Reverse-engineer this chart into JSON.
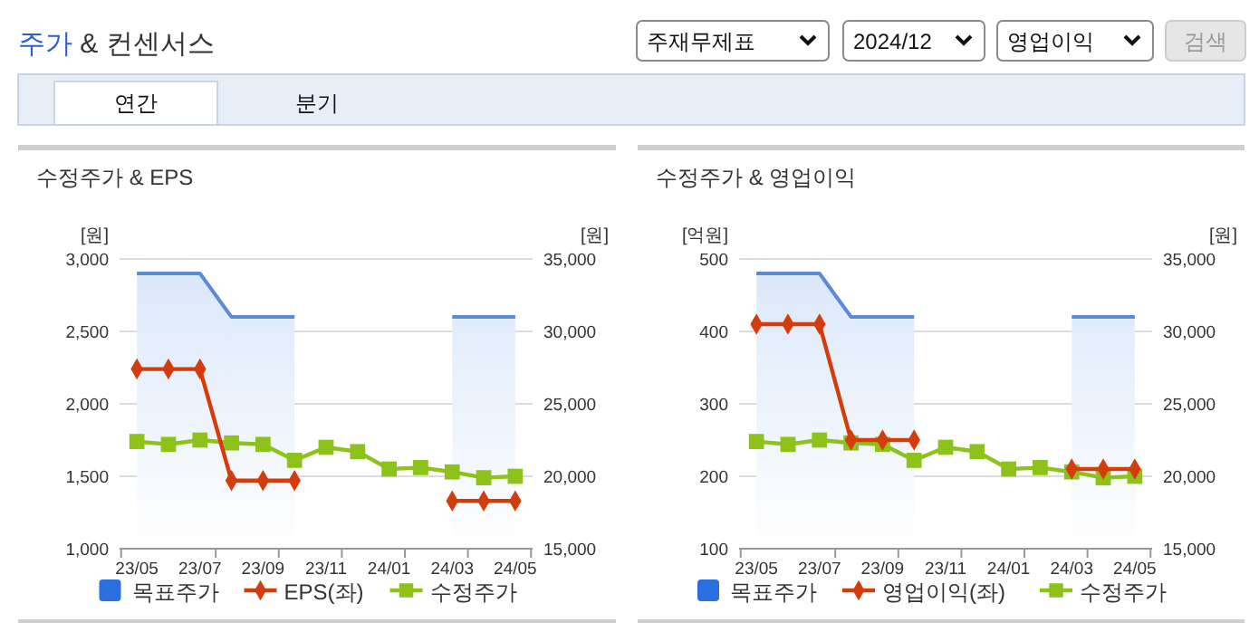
{
  "chart_data": [
    {
      "type": "other",
      "title": "주가 & 컨센서스",
      "annotations": [
        "주재무제표",
        "2024/12",
        "영업이익",
        "검색",
        "연간",
        "분기"
      ]
    },
    {
      "type": "line",
      "title": "수정주가 & EPS",
      "categories": [
        "23/05",
        null,
        "23/07",
        null,
        "23/09",
        null,
        "23/11",
        null,
        "24/01",
        null,
        "24/03",
        null,
        "24/05"
      ],
      "ylabel": "[원]",
      "y2label": "[원]",
      "ylim": [
        1000,
        3000
      ],
      "yticks": [
        {
          "value": 1000,
          "label": "1,000"
        },
        {
          "value": 1500,
          "label": "1,500"
        },
        {
          "value": 2000,
          "label": "2,000"
        },
        {
          "value": 2500,
          "label": "2,500"
        },
        {
          "value": 3000,
          "label": "3,000"
        }
      ],
      "y2lim": [
        15000,
        35000
      ],
      "y2ticks": [
        {
          "value": 15000,
          "label": "15,000"
        },
        {
          "value": 20000,
          "label": "20,000"
        },
        {
          "value": 25000,
          "label": "25,000"
        },
        {
          "value": 30000,
          "label": "30,000"
        },
        {
          "value": 35000,
          "label": "35,000"
        }
      ],
      "grid": "y",
      "legend": "bottom",
      "series": [
        {
          "name": "목표주가",
          "type": "area",
          "axis": "y2",
          "color": "#5b8ad8",
          "marker": "none",
          "values": [
            34000,
            34000,
            34000,
            31000,
            31000,
            31000,
            null,
            null,
            null,
            null,
            31000,
            31000,
            31000
          ]
        },
        {
          "name": "EPS(좌)",
          "type": "line",
          "color": "#d43c0c",
          "marker": "diamond",
          "values": [
            2240,
            2240,
            2240,
            1470,
            1470,
            1470,
            null,
            null,
            null,
            null,
            1330,
            1330,
            1330
          ]
        },
        {
          "name": "수정주가",
          "type": "line",
          "axis": "y2",
          "color": "#8cc21a",
          "marker": "square",
          "values": [
            22400,
            22200,
            22500,
            22300,
            22200,
            21100,
            22000,
            21700,
            20500,
            20600,
            20300,
            19900,
            20000
          ]
        }
      ]
    },
    {
      "type": "line",
      "title": "수정주가 & 영업이익",
      "categories": [
        "23/05",
        null,
        "23/07",
        null,
        "23/09",
        null,
        "23/11",
        null,
        "24/01",
        null,
        "24/03",
        null,
        "24/05"
      ],
      "ylabel": "[억원]",
      "y2label": "[원]",
      "ylim": [
        100,
        500
      ],
      "yticks": [
        100,
        200,
        300,
        400,
        500
      ],
      "y2lim": [
        15000,
        35000
      ],
      "y2ticks": [
        {
          "value": 15000,
          "label": "15,000"
        },
        {
          "value": 20000,
          "label": "20,000"
        },
        {
          "value": 25000,
          "label": "25,000"
        },
        {
          "value": 30000,
          "label": "30,000"
        },
        {
          "value": 35000,
          "label": "35,000"
        }
      ],
      "grid": "y",
      "legend": "bottom",
      "series": [
        {
          "name": "목표주가",
          "type": "area",
          "axis": "y2",
          "color": "#5b8ad8",
          "marker": "none",
          "values": [
            34000,
            34000,
            34000,
            31000,
            31000,
            31000,
            null,
            null,
            null,
            null,
            31000,
            31000,
            31000
          ]
        },
        {
          "name": "영업이익(좌)",
          "type": "line",
          "color": "#d43c0c",
          "marker": "diamond",
          "values": [
            410,
            410,
            410,
            250,
            250,
            250,
            null,
            null,
            null,
            null,
            210,
            210,
            210
          ]
        },
        {
          "name": "수정주가",
          "type": "line",
          "axis": "y2",
          "color": "#8cc21a",
          "marker": "square",
          "values": [
            22400,
            22200,
            22500,
            22300,
            22200,
            21100,
            22000,
            21700,
            20500,
            20600,
            20300,
            19900,
            20000
          ]
        }
      ]
    }
  ]
}
